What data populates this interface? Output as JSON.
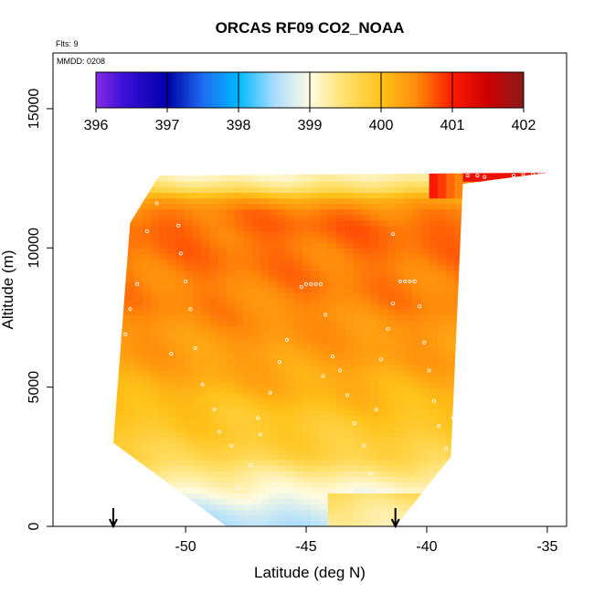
{
  "chart_data": {
    "type": "heatmap",
    "title": "ORCAS RF09 CO2_NOAA",
    "flights_label": "Flts: 9",
    "date_label": "MMDD: 0208",
    "xlabel": "Latitude (deg N)",
    "ylabel": "Altitude (m)",
    "xlim": [
      -55.5,
      -34.2
    ],
    "ylim": [
      0,
      17000
    ],
    "x_ticks": [
      -50,
      -45,
      -40,
      -35
    ],
    "y_ticks": [
      0,
      5000,
      10000,
      15000
    ],
    "colorbar": {
      "min": 396,
      "max": 402,
      "ticks": [
        396,
        397,
        398,
        399,
        400,
        401,
        402
      ],
      "stops": [
        {
          "v": 396.0,
          "c": "#8a2be2"
        },
        {
          "v": 396.4,
          "c": "#3a10d8"
        },
        {
          "v": 397.0,
          "c": "#0000a8"
        },
        {
          "v": 397.5,
          "c": "#1e6cf0"
        },
        {
          "v": 398.0,
          "c": "#00b8ff"
        },
        {
          "v": 398.5,
          "c": "#a8dcff"
        },
        {
          "v": 399.0,
          "c": "#fffbe0"
        },
        {
          "v": 399.5,
          "c": "#ffe06a"
        },
        {
          "v": 400.0,
          "c": "#ffc21a"
        },
        {
          "v": 400.5,
          "c": "#ff8a0a"
        },
        {
          "v": 401.0,
          "c": "#ff1a00"
        },
        {
          "v": 401.5,
          "c": "#cc0000"
        },
        {
          "v": 402.0,
          "c": "#8b1a1a"
        }
      ]
    },
    "domain": {
      "bottom_left": [
        -48.3,
        0
      ],
      "bottom_right": [
        -41.3,
        0
      ],
      "right_low": [
        -39.0,
        2500
      ],
      "right_high": [
        -38.5,
        12300
      ],
      "top_right": [
        -35.0,
        12700
      ],
      "top_left": [
        -51.1,
        12600
      ],
      "left_mid": [
        -52.3,
        10900
      ],
      "left_lower": [
        -53.0,
        3000
      ]
    },
    "profile": [
      {
        "alt": 0,
        "v": 398.6
      },
      {
        "alt": 500,
        "v": 398.7
      },
      {
        "alt": 1000,
        "v": 398.9
      },
      {
        "alt": 1800,
        "v": 399.3
      },
      {
        "alt": 2500,
        "v": 399.7
      },
      {
        "alt": 3200,
        "v": 399.85
      },
      {
        "alt": 4000,
        "v": 399.95
      },
      {
        "alt": 5000,
        "v": 400.15
      },
      {
        "alt": 6000,
        "v": 400.3
      },
      {
        "alt": 7000,
        "v": 400.4
      },
      {
        "alt": 8000,
        "v": 400.5
      },
      {
        "alt": 9000,
        "v": 400.55
      },
      {
        "alt": 10000,
        "v": 400.6
      },
      {
        "alt": 10800,
        "v": 400.65
      },
      {
        "alt": 11300,
        "v": 400.55
      },
      {
        "alt": 11800,
        "v": 400.2
      },
      {
        "alt": 12100,
        "v": 399.6
      },
      {
        "alt": 12500,
        "v": 399.2
      }
    ],
    "sample_points": [
      [
        -52.5,
        6900
      ],
      [
        -52.3,
        7800
      ],
      [
        -52.0,
        8700
      ],
      [
        -51.6,
        10600
      ],
      [
        -51.2,
        11600
      ],
      [
        -50.3,
        10800
      ],
      [
        -50.2,
        9800
      ],
      [
        -50.0,
        8800
      ],
      [
        -49.8,
        7800
      ],
      [
        -49.6,
        6400
      ],
      [
        -49.3,
        5100
      ],
      [
        -48.8,
        4200
      ],
      [
        -48.6,
        3400
      ],
      [
        -48.1,
        2900
      ],
      [
        -47.8,
        1400
      ],
      [
        -47.3,
        2200
      ],
      [
        -47.0,
        3900
      ],
      [
        -46.5,
        4800
      ],
      [
        -46.1,
        5900
      ],
      [
        -45.8,
        6700
      ],
      [
        -45.2,
        8600
      ],
      [
        -45.0,
        8700
      ],
      [
        -44.8,
        8700
      ],
      [
        -44.6,
        8700
      ],
      [
        -44.4,
        8700
      ],
      [
        -44.2,
        7600
      ],
      [
        -43.9,
        6100
      ],
      [
        -43.6,
        5600
      ],
      [
        -43.3,
        4700
      ],
      [
        -43.0,
        3700
      ],
      [
        -42.6,
        2900
      ],
      [
        -42.3,
        1900
      ],
      [
        -42.1,
        4200
      ],
      [
        -41.9,
        6000
      ],
      [
        -41.6,
        7100
      ],
      [
        -41.4,
        8000
      ],
      [
        -41.1,
        8800
      ],
      [
        -40.9,
        8800
      ],
      [
        -40.7,
        8800
      ],
      [
        -40.5,
        8800
      ],
      [
        -40.3,
        7900
      ],
      [
        -40.1,
        6600
      ],
      [
        -39.9,
        5600
      ],
      [
        -39.7,
        4500
      ],
      [
        -39.5,
        3600
      ],
      [
        -39.2,
        2800
      ],
      [
        -38.9,
        3900
      ],
      [
        -38.7,
        5300
      ],
      [
        -38.4,
        6800
      ],
      [
        -38.1,
        8100
      ],
      [
        -37.8,
        9600
      ],
      [
        -37.5,
        10600
      ],
      [
        -37.2,
        11600
      ],
      [
        -36.8,
        12300
      ],
      [
        -36.4,
        12600
      ],
      [
        -36.0,
        12650
      ],
      [
        -35.6,
        12650
      ],
      [
        -35.3,
        12650
      ],
      [
        -38.3,
        12600
      ],
      [
        -37.9,
        12600
      ],
      [
        -37.6,
        12550
      ],
      [
        -41.4,
        10500
      ],
      [
        -44.3,
        5400
      ],
      [
        -46.9,
        3300
      ],
      [
        -50.6,
        6200
      ]
    ],
    "arrows_x": [
      -53.0,
      -41.3
    ]
  }
}
